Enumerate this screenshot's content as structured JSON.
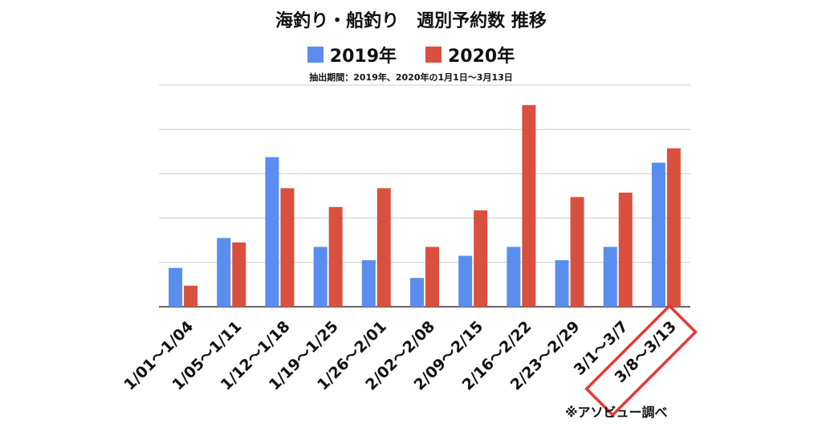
{
  "chart_data": {
    "type": "bar",
    "title": "海釣り・船釣り　週別予約数 推移",
    "subtitle": "抽出期間：2019年、2020年の1月1日〜3月13日",
    "categories": [
      "1/01〜1/04",
      "1/05〜1/11",
      "1/12〜1/18",
      "1/19〜1/25",
      "1/26〜2/01",
      "2/02〜2/08",
      "2/09〜2/15",
      "2/16〜2/22",
      "2/23〜2/29",
      "3/1〜3/7",
      "3/8〜3/13"
    ],
    "series": [
      {
        "name": "2019年",
        "color": "#5b8def",
        "values": [
          1.75,
          3.1,
          6.75,
          2.7,
          2.1,
          1.3,
          2.3,
          2.7,
          2.1,
          2.7,
          6.5
        ]
      },
      {
        "name": "2020年",
        "color": "#d9503f",
        "values": [
          0.95,
          2.9,
          5.35,
          4.5,
          5.35,
          2.7,
          4.35,
          9.1,
          4.95,
          5.15,
          7.15
        ]
      }
    ],
    "ylim": [
      0,
      10
    ],
    "grid": true,
    "legend_position": "top-center",
    "highlight_category": "3/8〜3/13",
    "highlight_color": "#e53935",
    "source_note": "※アソビュー調べ"
  }
}
